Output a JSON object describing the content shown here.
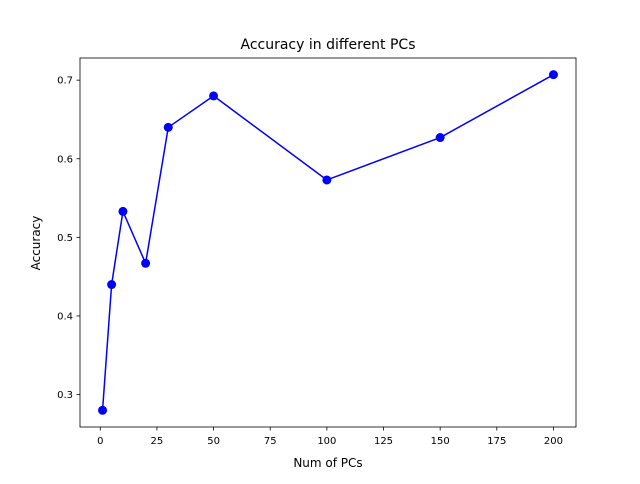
{
  "chart_data": {
    "type": "line",
    "title": "Accuracy in different PCs",
    "xlabel": "Num of PCs",
    "ylabel": "Accuracy",
    "xlim": [
      -8.95,
      209.95
    ],
    "ylim": [
      0.2587,
      0.7282
    ],
    "xticks": [
      0,
      25,
      50,
      75,
      100,
      125,
      150,
      175,
      200
    ],
    "yticks": [
      0.3,
      0.4,
      0.5,
      0.6,
      0.7
    ],
    "grid": false,
    "series": [
      {
        "color": "#0000ff",
        "marker": "circle",
        "x": [
          1,
          5,
          10,
          20,
          30,
          50,
          100,
          150,
          200
        ],
        "y": [
          0.28,
          0.44,
          0.533,
          0.467,
          0.64,
          0.68,
          0.573,
          0.627,
          0.707
        ]
      }
    ]
  }
}
